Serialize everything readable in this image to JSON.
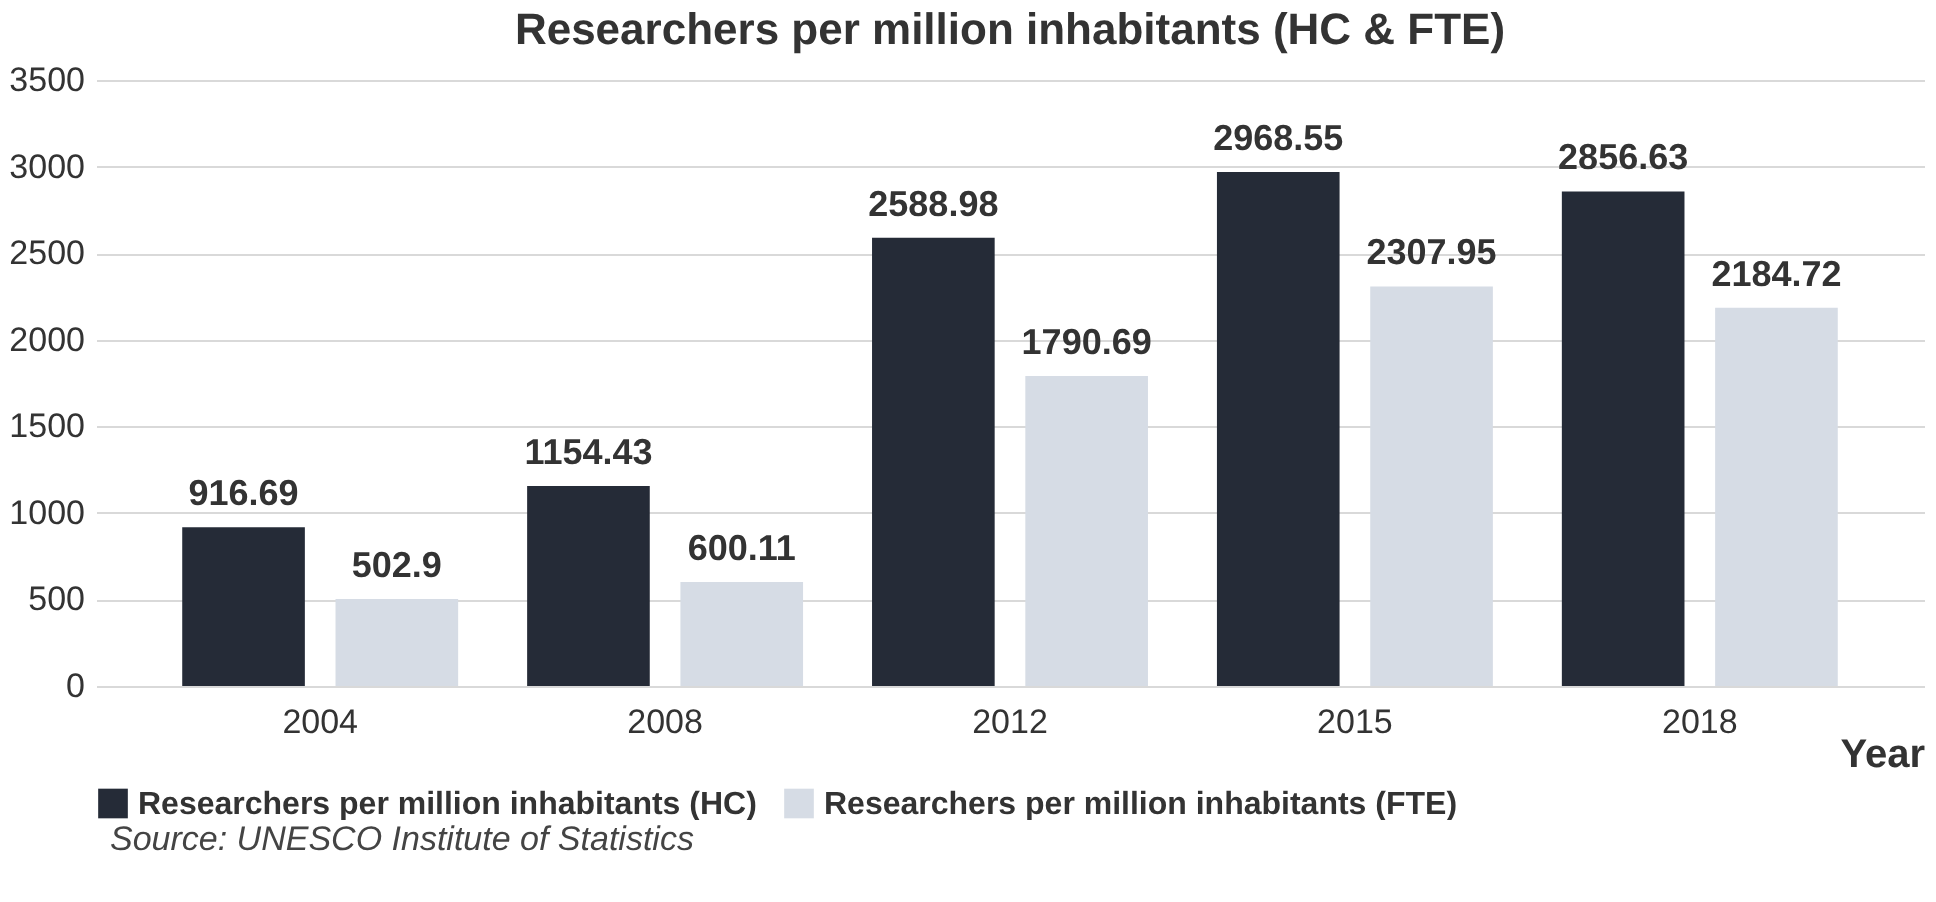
{
  "chart_data": {
    "type": "bar",
    "title": "Researchers per million inhabitants (HC & FTE)",
    "xlabel": "Year",
    "categories": [
      "2004",
      "2008",
      "2012",
      "2015",
      "2018"
    ],
    "series": [
      {
        "name": "Researchers per million inhabitants (HC)",
        "color": "#252b37",
        "values": [
          916.69,
          1154.43,
          2588.98,
          2968.55,
          2856.63
        ]
      },
      {
        "name": "Researchers per million inhabitants (FTE)",
        "color": "#d6dce5",
        "values": [
          502.9,
          600.11,
          1790.69,
          2307.95,
          2184.72
        ]
      }
    ],
    "ylim": [
      0,
      3500
    ],
    "yticks": [
      0,
      500,
      1000,
      1500,
      2000,
      2500,
      3000,
      3500
    ],
    "grid": "y",
    "legend": "bottom",
    "data_labels": true,
    "annotations": [
      "Source:  UNESCO Institute of Statistics"
    ]
  }
}
